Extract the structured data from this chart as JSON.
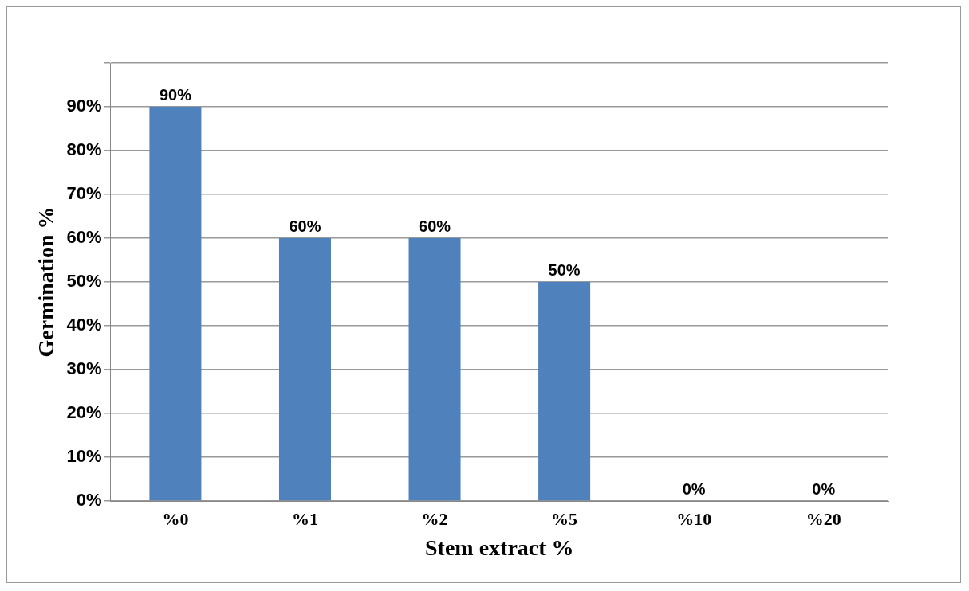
{
  "chart_data": {
    "type": "bar",
    "xlabel": "Stem extract %",
    "ylabel": "Germination %",
    "categories": [
      "%0",
      "%1",
      "%2",
      "%5",
      "%10",
      "%20"
    ],
    "values": [
      90,
      60,
      60,
      50,
      0,
      0
    ],
    "value_labels": [
      "90%",
      "60%",
      "60%",
      "50%",
      "0%",
      "0%"
    ],
    "color": "#4f81bd",
    "ylim": [
      0,
      100
    ],
    "yticks": [
      {
        "value": 0,
        "label": "0%"
      },
      {
        "value": 10,
        "label": "10%"
      },
      {
        "value": 20,
        "label": "20%"
      },
      {
        "value": 30,
        "label": "30%"
      },
      {
        "value": 40,
        "label": "40%"
      },
      {
        "value": 50,
        "label": "50%"
      },
      {
        "value": 60,
        "label": "60%"
      },
      {
        "value": 70,
        "label": "70%"
      },
      {
        "value": 80,
        "label": "80%"
      },
      {
        "value": 90,
        "label": "90%"
      },
      {
        "value": 100,
        "label": null
      }
    ],
    "grid": "y",
    "legend": false
  }
}
